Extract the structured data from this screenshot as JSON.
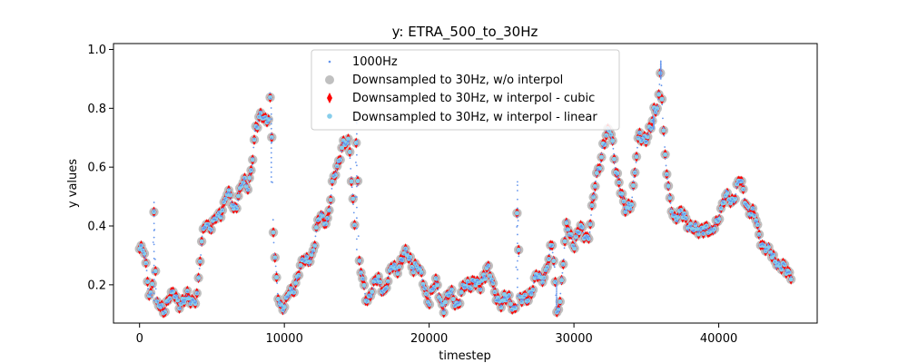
{
  "chart_data": {
    "type": "scatter",
    "title": "y: ETRA_500_to_30Hz",
    "xlabel": "timestep",
    "ylabel": "y values",
    "xlim": [
      -1800,
      46800
    ],
    "ylim": [
      0.07,
      1.02
    ],
    "xticks": [
      0,
      10000,
      20000,
      30000,
      40000
    ],
    "xtick_labels": [
      "0",
      "10000",
      "20000",
      "30000",
      "40000"
    ],
    "yticks": [
      0.2,
      0.4,
      0.6,
      0.8,
      1.0
    ],
    "ytick_labels": [
      "0.2",
      "0.4",
      "0.6",
      "0.8",
      "1.0"
    ],
    "grid": false,
    "legend_position": "top-center",
    "series": [
      {
        "name": "1000Hz",
        "marker": "small-dot",
        "color": "#6495ed"
      },
      {
        "name": "Downsampled to 30Hz, w/o interpol",
        "marker": "large-circle",
        "color": "#c0c0c0"
      },
      {
        "name": "Downsampled to 30Hz, w interpol - cubic",
        "marker": "thin-diamond",
        "color": "#ff0000"
      },
      {
        "name": "Downsampled to 30Hz, w interpol - linear",
        "marker": "circle",
        "color": "#87ceeb"
      }
    ],
    "profile": {
      "x": [
        0,
        300,
        600,
        900,
        1200,
        1500,
        2000,
        2500,
        3000,
        3500,
        4000,
        4300,
        4600,
        5000,
        5500,
        6000,
        6500,
        7000,
        7500,
        8000,
        8500,
        9000,
        9100,
        9300,
        9600,
        10000,
        10500,
        11000,
        11500,
        12000,
        12500,
        13000,
        13500,
        14000,
        14500,
        15000,
        15300,
        15600,
        16000,
        16500,
        17000,
        17500,
        18000,
        18500,
        19000,
        19500,
        20000,
        20500,
        21000,
        21500,
        22000,
        22500,
        23000,
        23500,
        24000,
        24500,
        25000,
        25500,
        26000,
        26500,
        27000,
        27500,
        28000,
        28500,
        29000,
        29500,
        30000,
        30500,
        31000,
        31500,
        32000,
        32500,
        33000,
        33500,
        34000,
        34500,
        35000,
        35500,
        36000,
        36300,
        36600,
        37000,
        37500,
        38000,
        38500,
        39000,
        39500,
        40000,
        40500,
        41000,
        41500,
        42000,
        42500,
        43000,
        43500,
        44000,
        44500,
        45000
      ],
      "y": [
        0.32,
        0.3,
        0.2,
        0.16,
        0.12,
        0.12,
        0.15,
        0.16,
        0.14,
        0.15,
        0.17,
        0.34,
        0.42,
        0.4,
        0.43,
        0.52,
        0.45,
        0.55,
        0.52,
        0.73,
        0.77,
        0.78,
        0.55,
        0.29,
        0.15,
        0.13,
        0.17,
        0.25,
        0.28,
        0.32,
        0.44,
        0.42,
        0.58,
        0.68,
        0.66,
        0.32,
        0.23,
        0.16,
        0.18,
        0.21,
        0.19,
        0.26,
        0.28,
        0.3,
        0.27,
        0.22,
        0.15,
        0.2,
        0.13,
        0.17,
        0.14,
        0.19,
        0.22,
        0.18,
        0.28,
        0.16,
        0.15,
        0.14,
        0.13,
        0.14,
        0.18,
        0.22,
        0.24,
        0.32,
        0.13,
        0.4,
        0.35,
        0.38,
        0.37,
        0.54,
        0.68,
        0.72,
        0.58,
        0.44,
        0.5,
        0.7,
        0.71,
        0.73,
        0.9,
        0.62,
        0.48,
        0.44,
        0.43,
        0.41,
        0.37,
        0.41,
        0.36,
        0.45,
        0.49,
        0.5,
        0.55,
        0.47,
        0.42,
        0.35,
        0.3,
        0.29,
        0.24,
        0.25
      ],
      "spikes": [
        {
          "x": 1000,
          "y": 0.48
        },
        {
          "x": 9100,
          "y": 0.78
        },
        {
          "x": 15000,
          "y": 0.82
        },
        {
          "x": 26100,
          "y": 0.55
        },
        {
          "x": 28800,
          "y": 0.12
        },
        {
          "x": 36000,
          "y": 0.96
        },
        {
          "x": 35500,
          "y": 0.77
        }
      ]
    }
  }
}
